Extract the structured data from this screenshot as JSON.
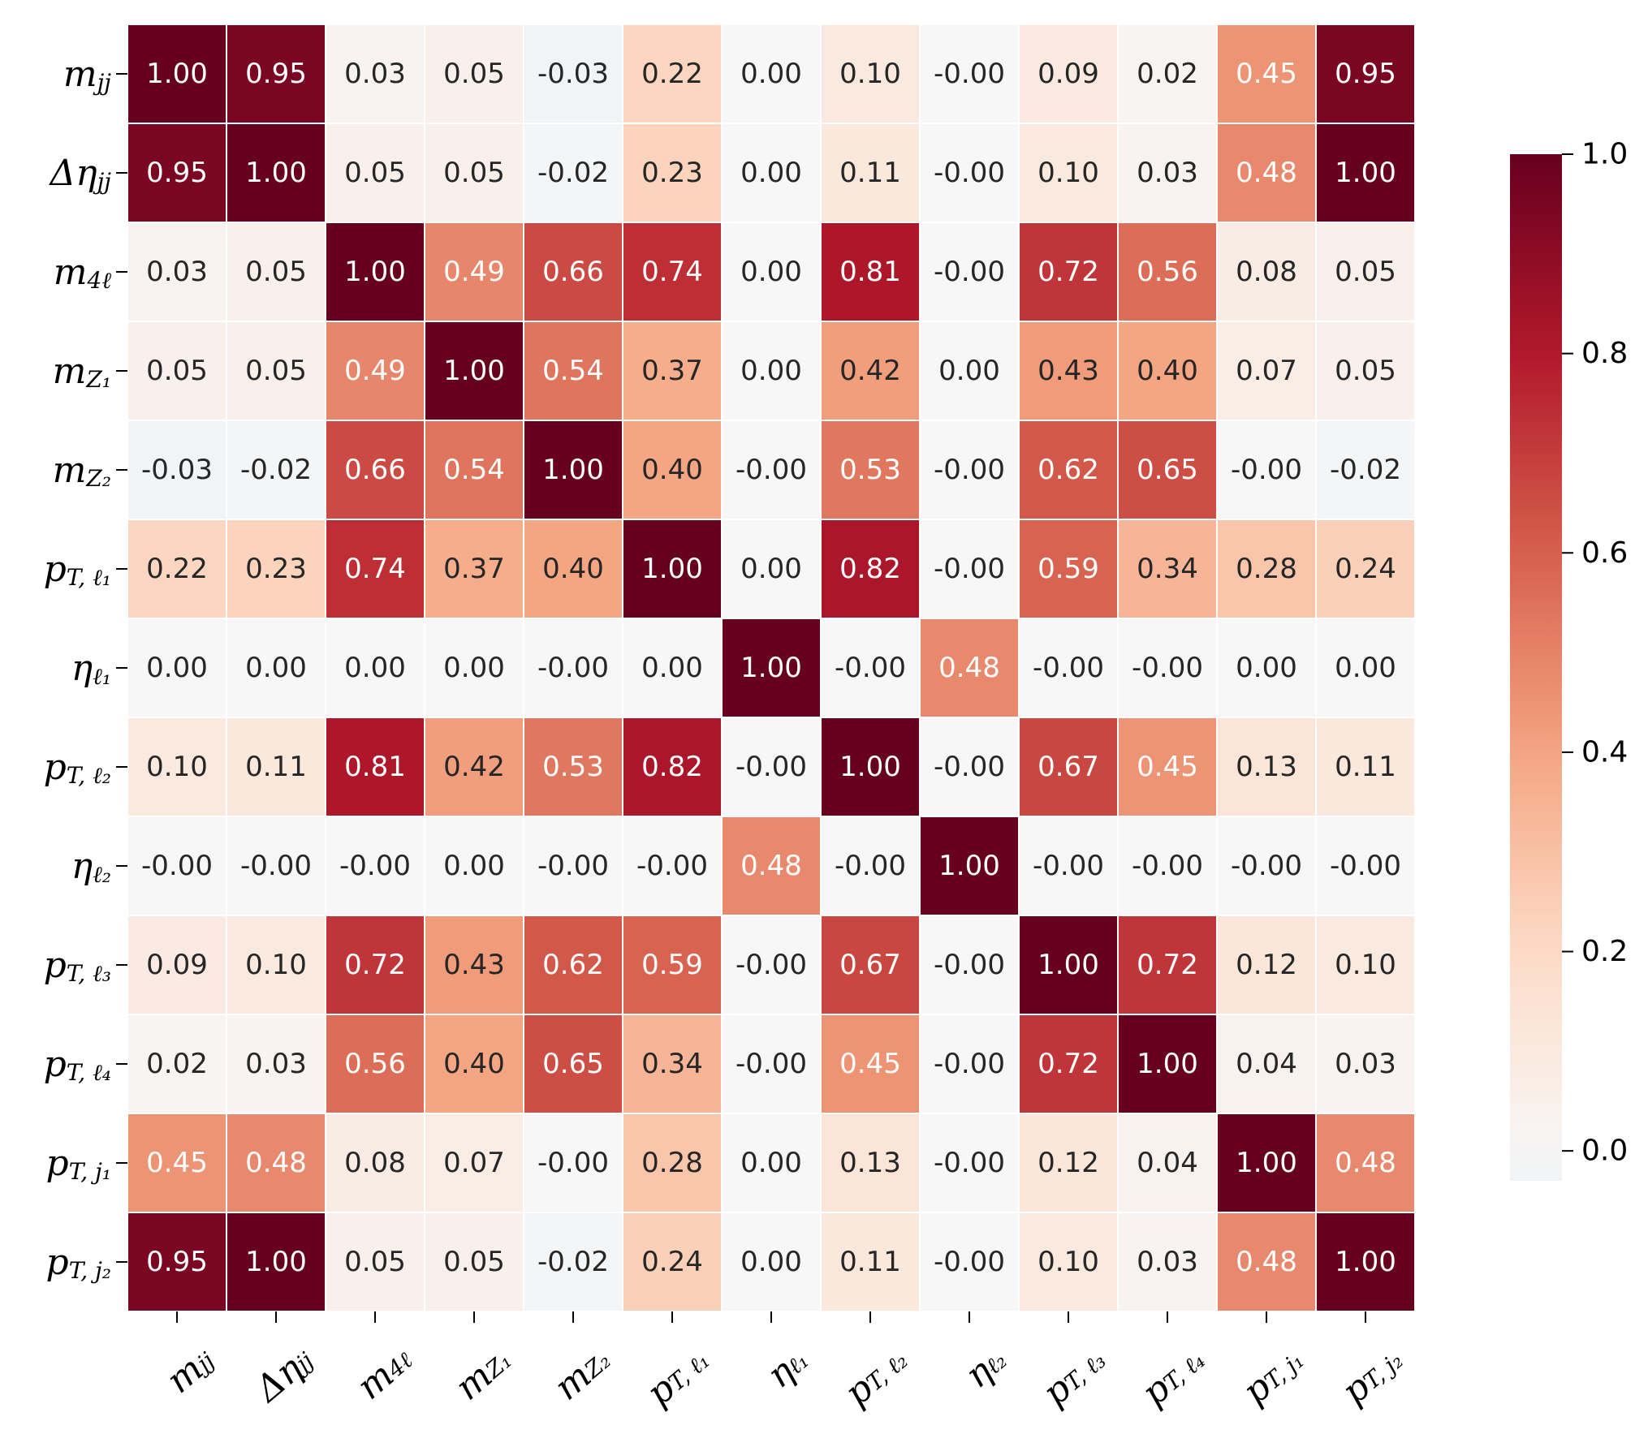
{
  "chart_data": {
    "type": "heatmap",
    "title": "",
    "row_labels": [
      {
        "base": "m",
        "sub": "jj"
      },
      {
        "base": "Δη",
        "sub": "jj"
      },
      {
        "base": "m",
        "sub": "4ℓ"
      },
      {
        "base": "m",
        "sub": "Z₁"
      },
      {
        "base": "m",
        "sub": "Z₂"
      },
      {
        "base": "p",
        "sub": "T, ℓ₁"
      },
      {
        "base": "η",
        "sub": "ℓ₁"
      },
      {
        "base": "p",
        "sub": "T, ℓ₂"
      },
      {
        "base": "η",
        "sub": "ℓ₂"
      },
      {
        "base": "p",
        "sub": "T, ℓ₃"
      },
      {
        "base": "p",
        "sub": "T, ℓ₄"
      },
      {
        "base": "p",
        "sub": "T, j₁"
      },
      {
        "base": "p",
        "sub": "T, j₂"
      }
    ],
    "col_labels": [
      {
        "base": "m",
        "sub": "jj"
      },
      {
        "base": "Δη",
        "sub": "jj"
      },
      {
        "base": "m",
        "sub": "4ℓ"
      },
      {
        "base": "m",
        "sub": "Z₁"
      },
      {
        "base": "m",
        "sub": "Z₂"
      },
      {
        "base": "p",
        "sub": "T, ℓ₁"
      },
      {
        "base": "η",
        "sub": "ℓ₁"
      },
      {
        "base": "p",
        "sub": "T, ℓ₂"
      },
      {
        "base": "η",
        "sub": "ℓ₂"
      },
      {
        "base": "p",
        "sub": "T, ℓ₃"
      },
      {
        "base": "p",
        "sub": "T, ℓ₄"
      },
      {
        "base": "p",
        "sub": "T, j₁"
      },
      {
        "base": "p",
        "sub": "T, j₂"
      }
    ],
    "values": [
      [
        "1.00",
        "0.95",
        "0.03",
        "0.05",
        "-0.03",
        "0.22",
        "0.00",
        "0.10",
        "-0.00",
        "0.09",
        "0.02",
        "0.45",
        "0.95"
      ],
      [
        "0.95",
        "1.00",
        "0.05",
        "0.05",
        "-0.02",
        "0.23",
        "0.00",
        "0.11",
        "-0.00",
        "0.10",
        "0.03",
        "0.48",
        "1.00"
      ],
      [
        "0.03",
        "0.05",
        "1.00",
        "0.49",
        "0.66",
        "0.74",
        "0.00",
        "0.81",
        "-0.00",
        "0.72",
        "0.56",
        "0.08",
        "0.05"
      ],
      [
        "0.05",
        "0.05",
        "0.49",
        "1.00",
        "0.54",
        "0.37",
        "0.00",
        "0.42",
        "0.00",
        "0.43",
        "0.40",
        "0.07",
        "0.05"
      ],
      [
        "-0.03",
        "-0.02",
        "0.66",
        "0.54",
        "1.00",
        "0.40",
        "-0.00",
        "0.53",
        "-0.00",
        "0.62",
        "0.65",
        "-0.00",
        "-0.02"
      ],
      [
        "0.22",
        "0.23",
        "0.74",
        "0.37",
        "0.40",
        "1.00",
        "0.00",
        "0.82",
        "-0.00",
        "0.59",
        "0.34",
        "0.28",
        "0.24"
      ],
      [
        "0.00",
        "0.00",
        "0.00",
        "0.00",
        "-0.00",
        "0.00",
        "1.00",
        "-0.00",
        "0.48",
        "-0.00",
        "-0.00",
        "0.00",
        "0.00"
      ],
      [
        "0.10",
        "0.11",
        "0.81",
        "0.42",
        "0.53",
        "0.82",
        "-0.00",
        "1.00",
        "-0.00",
        "0.67",
        "0.45",
        "0.13",
        "0.11"
      ],
      [
        "-0.00",
        "-0.00",
        "-0.00",
        "0.00",
        "-0.00",
        "-0.00",
        "0.48",
        "-0.00",
        "1.00",
        "-0.00",
        "-0.00",
        "-0.00",
        "-0.00"
      ],
      [
        "0.09",
        "0.10",
        "0.72",
        "0.43",
        "0.62",
        "0.59",
        "-0.00",
        "0.67",
        "-0.00",
        "1.00",
        "0.72",
        "0.12",
        "0.10"
      ],
      [
        "0.02",
        "0.03",
        "0.56",
        "0.40",
        "0.65",
        "0.34",
        "-0.00",
        "0.45",
        "-0.00",
        "0.72",
        "1.00",
        "0.04",
        "0.03"
      ],
      [
        "0.45",
        "0.48",
        "0.08",
        "0.07",
        "-0.00",
        "0.28",
        "0.00",
        "0.13",
        "-0.00",
        "0.12",
        "0.04",
        "1.00",
        "0.48"
      ],
      [
        "0.95",
        "1.00",
        "0.05",
        "0.05",
        "-0.02",
        "0.24",
        "0.00",
        "0.11",
        "-0.00",
        "0.10",
        "0.03",
        "0.48",
        "1.00"
      ]
    ],
    "color_range": [
      -0.03,
      1.0
    ],
    "colorbar_ticks": [
      "1.0",
      "0.8",
      "0.6",
      "0.4",
      "0.2",
      "0.0"
    ],
    "colormap": "RdBu_r"
  }
}
